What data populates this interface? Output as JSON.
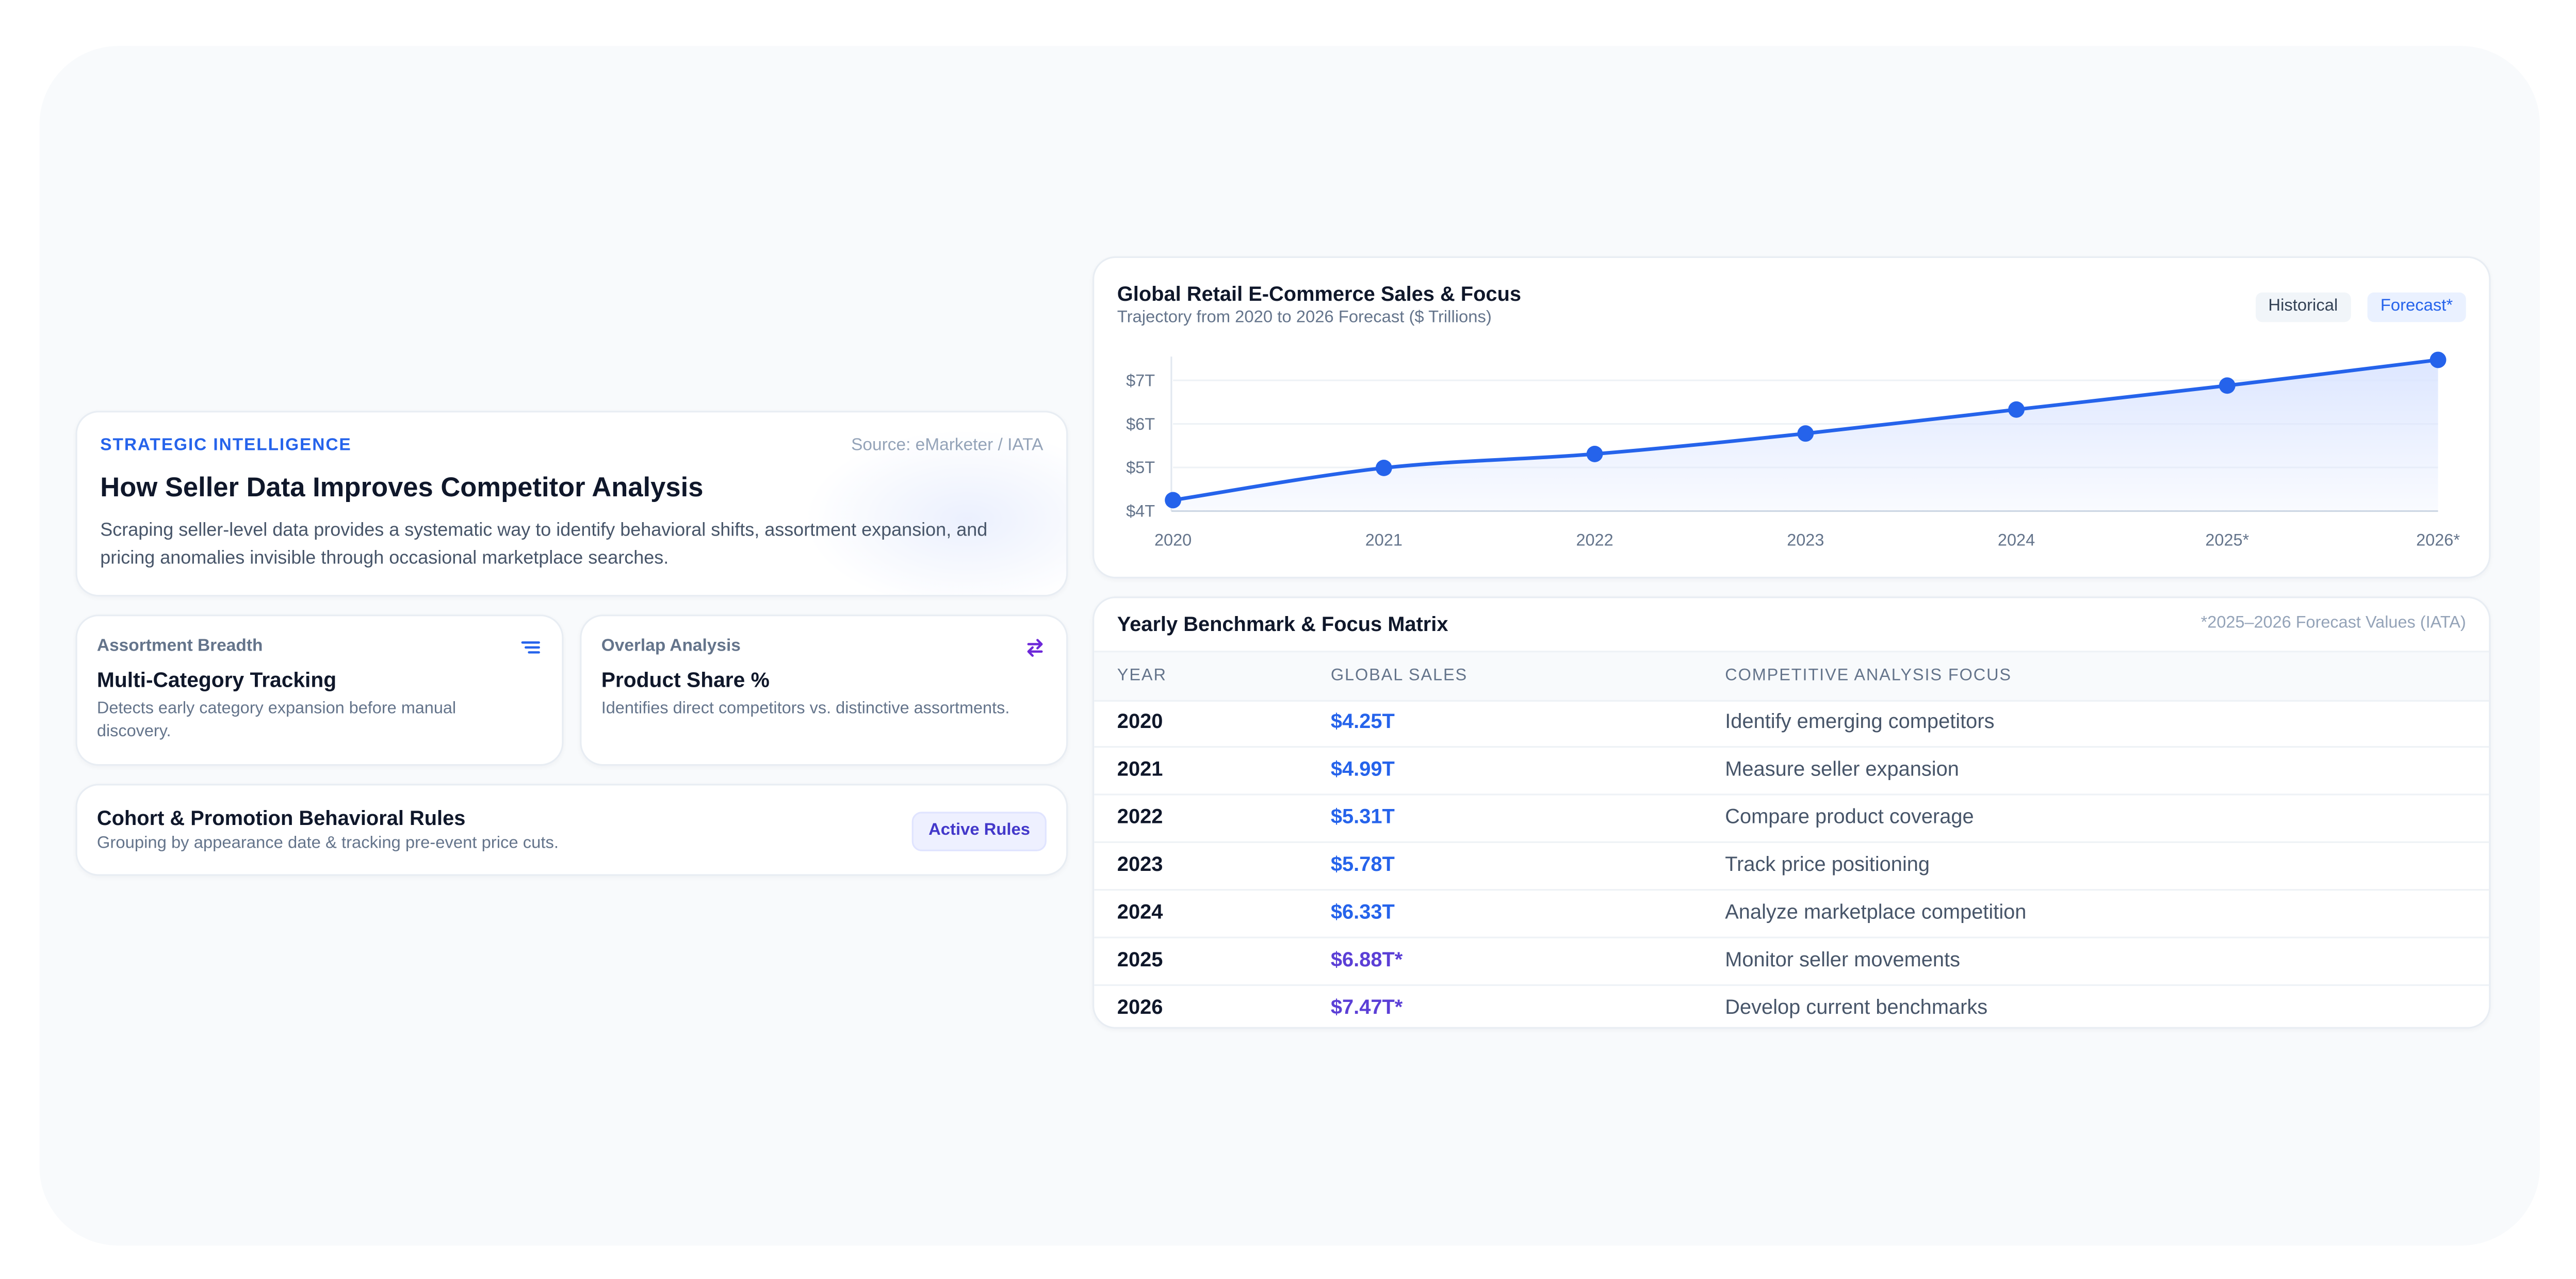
{
  "hero": {
    "eyebrow": "STRATEGIC INTELLIGENCE",
    "source": "Source: eMarketer / IATA",
    "title": "How Seller Data Improves Competitor Analysis",
    "description": "Scraping seller-level data provides a systematic way to identify behavioral shifts, assortment expansion, and pricing anomalies invisible through occasional marketplace searches."
  },
  "cards": [
    {
      "label": "Assortment Breadth",
      "title": "Multi-Category Tracking",
      "description": "Detects early category expansion before manual discovery.",
      "icon": "list-filter-icon"
    },
    {
      "label": "Overlap Analysis",
      "title": "Product Share %",
      "description": "Identifies direct competitors vs. distinctive assortments.",
      "icon": "swap-arrows-icon"
    }
  ],
  "rules": {
    "title": "Cohort & Promotion Behavioral Rules",
    "description": "Grouping by appearance date & tracking pre-event price cuts.",
    "badge": "Active Rules"
  },
  "chart_card": {
    "title": "Global Retail E-Commerce Sales & Focus",
    "subtitle": "Trajectory from 2020 to 2026 Forecast ($ Trillions)",
    "legend_historical": "Historical",
    "legend_forecast": "Forecast*"
  },
  "chart_data": {
    "type": "area",
    "categories": [
      "2020",
      "2021",
      "2022",
      "2023",
      "2024",
      "2025*",
      "2026*"
    ],
    "values": [
      4.25,
      4.99,
      5.31,
      5.78,
      6.33,
      6.88,
      7.47
    ],
    "y_ticks": [
      "$4T",
      "$5T",
      "$6T",
      "$7T"
    ],
    "y_tick_values": [
      4,
      5,
      6,
      7
    ],
    "ylim": [
      4,
      7.47
    ],
    "grid": true,
    "line_color": "#2563eb",
    "fill_color": "#dbe5ff"
  },
  "table": {
    "title": "Yearly Benchmark & Focus Matrix",
    "note": "*2025–2026 Forecast Values (IATA)",
    "headers": [
      "YEAR",
      "GLOBAL SALES",
      "COMPETITIVE ANALYSIS FOCUS"
    ],
    "rows": [
      {
        "year": "2020",
        "sales": "$4.25T",
        "focus": "Identify emerging competitors",
        "forecast": false
      },
      {
        "year": "2021",
        "sales": "$4.99T",
        "focus": "Measure seller expansion",
        "forecast": false
      },
      {
        "year": "2022",
        "sales": "$5.31T",
        "focus": "Compare product coverage",
        "forecast": false
      },
      {
        "year": "2023",
        "sales": "$5.78T",
        "focus": "Track price positioning",
        "forecast": false
      },
      {
        "year": "2024",
        "sales": "$6.33T",
        "focus": "Analyze marketplace competition",
        "forecast": false
      },
      {
        "year": "2025",
        "sales": "$6.88T*",
        "focus": "Monitor seller movements",
        "forecast": true
      },
      {
        "year": "2026",
        "sales": "$7.47T*",
        "focus": "Develop current benchmarks",
        "forecast": true
      }
    ]
  },
  "colors": {
    "accent": "#2563eb",
    "forecast_accent": "#5b3fd6",
    "background": "#f8fafc"
  }
}
